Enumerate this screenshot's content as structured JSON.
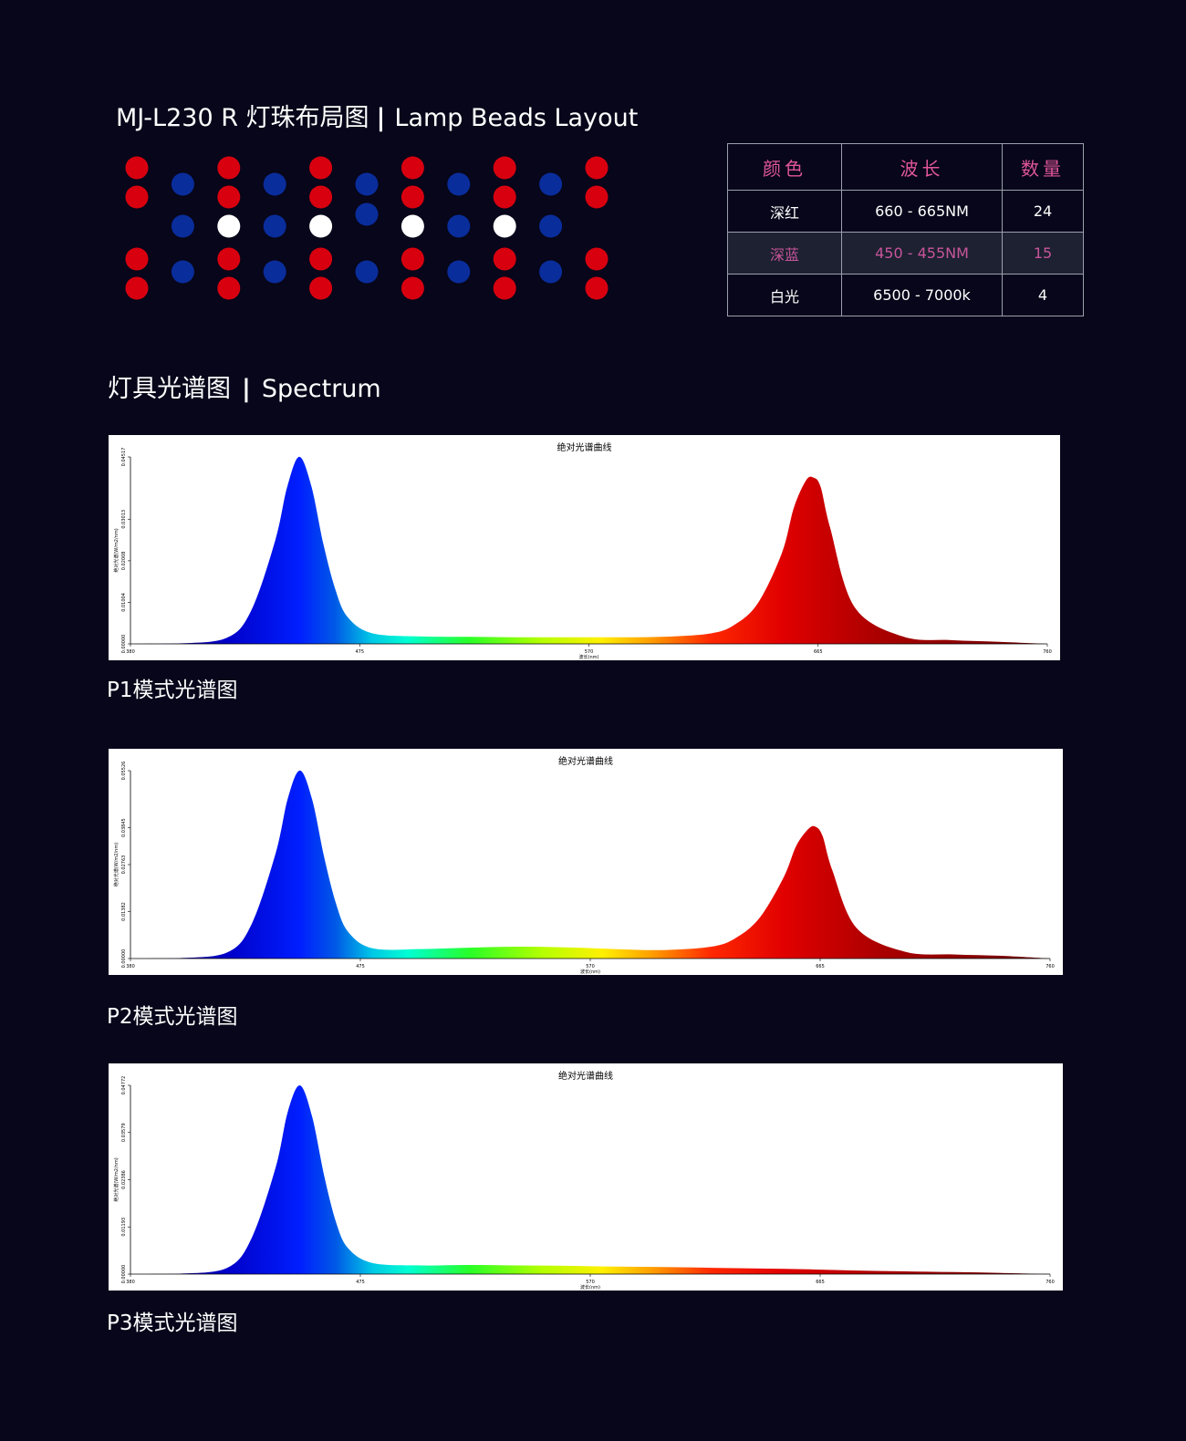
{
  "layout": {
    "title_main": "MJ-L230 R 灯珠布局图",
    "title_sep": "|",
    "title_en": "Lamp Beads Layout",
    "colors": {
      "red": "#d8000f",
      "blue": "#0a2d9c",
      "white": "#ffffff"
    },
    "bead_columns": [
      [
        "red",
        "red",
        null,
        "red",
        "red"
      ],
      [
        null,
        "blue",
        "blue",
        "blue",
        null
      ],
      [
        "red",
        "red",
        "white",
        "red",
        "red"
      ],
      [
        null,
        "blue",
        "blue",
        "blue",
        null
      ],
      [
        "red",
        "red",
        "white",
        "red",
        "red"
      ],
      [
        null,
        "blue",
        "blue",
        "blue",
        null
      ],
      [
        "red",
        "red",
        "white",
        "red",
        "red"
      ],
      [
        null,
        "blue",
        "blue",
        "blue",
        null
      ],
      [
        "red",
        "red",
        "white",
        "red",
        "red"
      ],
      [
        null,
        "blue",
        "blue",
        "blue",
        null
      ],
      [
        "red",
        "red",
        null,
        "red",
        "red"
      ]
    ]
  },
  "table": {
    "headers": [
      "颜色",
      "波长",
      "数量"
    ],
    "rows": [
      {
        "color": "深红",
        "wavelength": "660 - 665NM",
        "count": "24"
      },
      {
        "color": "深蓝",
        "wavelength": "450 - 455NM",
        "count": "15"
      },
      {
        "color": "白光",
        "wavelength": "6500 - 7000k",
        "count": "4"
      }
    ],
    "header_color": "#e0569a",
    "highlight_color": "#c8559a"
  },
  "spectrum": {
    "title_main": "灯具光谱图",
    "title_sep": "|",
    "title_en": "Spectrum"
  },
  "chart_data": [
    {
      "type": "area",
      "caption": "P1模式光谱图",
      "title": "绝对光谱曲线",
      "xlabel": "波长(nm)",
      "ylabel": "绝对光谱(W/m2/nm)",
      "xlim": [
        380,
        760
      ],
      "ylim": [
        0,
        0.04517
      ],
      "xticks": [
        "380",
        "475",
        "570",
        "665",
        "760"
      ],
      "yticks": [
        "0.00000",
        "0.01004",
        "0.02008",
        "0.03013",
        "0.04517"
      ],
      "x": [
        380,
        400,
        420,
        430,
        440,
        445,
        450,
        455,
        460,
        465,
        470,
        480,
        500,
        520,
        540,
        560,
        580,
        600,
        620,
        630,
        640,
        650,
        655,
        660,
        663,
        666,
        670,
        680,
        700,
        720,
        740,
        760
      ],
      "values": [
        0,
        0.0001,
        0.0015,
        0.008,
        0.025,
        0.038,
        0.0452,
        0.038,
        0.024,
        0.013,
        0.0065,
        0.0026,
        0.0018,
        0.0017,
        0.0016,
        0.0016,
        0.0016,
        0.0017,
        0.0025,
        0.0045,
        0.0098,
        0.022,
        0.033,
        0.0395,
        0.0402,
        0.038,
        0.028,
        0.009,
        0.0018,
        0.0009,
        0.0005,
        0
      ]
    },
    {
      "type": "area",
      "caption": "P2模式光谱图",
      "title": "绝对光谱曲线",
      "xlabel": "波长(nm)",
      "ylabel": "绝对光谱(W/m2/nm)",
      "xlim": [
        380,
        760
      ],
      "ylim": [
        0,
        0.05526
      ],
      "xticks": [
        "380",
        "475",
        "570",
        "665",
        "760"
      ],
      "yticks": [
        "0.00000",
        "0.01382",
        "0.02763",
        "0.03845",
        "0.05526"
      ],
      "x": [
        380,
        400,
        420,
        430,
        440,
        445,
        450,
        455,
        460,
        465,
        470,
        480,
        500,
        520,
        540,
        560,
        580,
        600,
        620,
        630,
        640,
        650,
        655,
        660,
        663,
        666,
        670,
        680,
        700,
        720,
        740,
        760
      ],
      "values": [
        0,
        0.0001,
        0.0018,
        0.01,
        0.031,
        0.047,
        0.0553,
        0.047,
        0.03,
        0.016,
        0.0078,
        0.003,
        0.0028,
        0.0032,
        0.0035,
        0.0033,
        0.0028,
        0.0025,
        0.0035,
        0.006,
        0.012,
        0.024,
        0.033,
        0.038,
        0.0388,
        0.036,
        0.026,
        0.009,
        0.002,
        0.0012,
        0.0008,
        0
      ]
    },
    {
      "type": "area",
      "caption": "P3模式光谱图",
      "title": "绝对光谱曲线",
      "xlabel": "波长(nm)",
      "ylabel": "绝对光谱(W/m2/nm)",
      "xlim": [
        380,
        760
      ],
      "ylim": [
        0,
        0.04772
      ],
      "xticks": [
        "380",
        "475",
        "570",
        "665",
        "760"
      ],
      "yticks": [
        "0.00000",
        "0.01193",
        "0.02386",
        "0.03579",
        "0.04772"
      ],
      "x": [
        380,
        400,
        420,
        430,
        440,
        445,
        450,
        455,
        460,
        465,
        470,
        480,
        500,
        520,
        540,
        560,
        580,
        600,
        620,
        640,
        660,
        680,
        700,
        720,
        740,
        760
      ],
      "values": [
        0,
        0.0001,
        0.0016,
        0.009,
        0.027,
        0.041,
        0.0477,
        0.04,
        0.025,
        0.013,
        0.0065,
        0.0028,
        0.0022,
        0.0023,
        0.0022,
        0.0021,
        0.0019,
        0.0018,
        0.0016,
        0.0014,
        0.0012,
        0.0009,
        0.0007,
        0.0005,
        0.0003,
        0
      ]
    }
  ]
}
